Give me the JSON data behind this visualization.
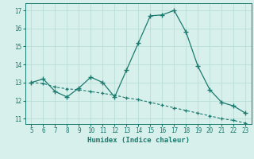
{
  "line1_x": [
    5,
    6,
    7,
    8,
    9,
    10,
    11,
    12,
    13,
    14,
    15,
    16,
    17,
    18,
    19,
    20,
    21,
    22,
    23
  ],
  "line1_y": [
    13.0,
    13.2,
    12.5,
    12.2,
    12.7,
    13.3,
    13.0,
    12.2,
    13.7,
    15.2,
    16.7,
    16.75,
    17.0,
    15.8,
    13.9,
    12.6,
    11.9,
    11.7,
    11.3
  ],
  "line2_x": [
    5,
    6,
    7,
    8,
    9,
    10,
    11,
    12,
    13,
    14,
    15,
    16,
    17,
    18,
    19,
    20,
    21,
    22,
    23
  ],
  "line2_y": [
    13.0,
    12.95,
    12.75,
    12.65,
    12.6,
    12.5,
    12.4,
    12.3,
    12.15,
    12.05,
    11.9,
    11.75,
    11.6,
    11.45,
    11.3,
    11.15,
    11.0,
    10.9,
    10.75
  ],
  "line_color": "#1a7a6e",
  "bg_color": "#d8f0ec",
  "grid_color": "#b8ddd8",
  "xlabel": "Humidex (Indice chaleur)",
  "xlim": [
    4.5,
    23.5
  ],
  "ylim": [
    10.7,
    17.4
  ],
  "xticks": [
    5,
    6,
    7,
    8,
    9,
    10,
    11,
    12,
    13,
    14,
    15,
    16,
    17,
    18,
    19,
    20,
    21,
    22,
    23
  ],
  "yticks": [
    11,
    12,
    13,
    14,
    15,
    16,
    17
  ]
}
